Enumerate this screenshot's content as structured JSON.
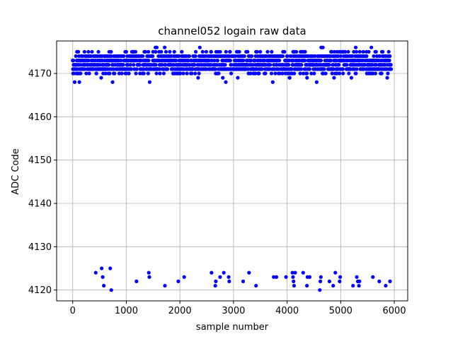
{
  "chart_data": {
    "type": "scatter",
    "title": "channel052 logain raw data",
    "xlabel": "sample number",
    "ylabel": "ADC Code",
    "xlim": [
      -300,
      6250
    ],
    "ylim": [
      4117.5,
      4177.5
    ],
    "xticks": [
      0,
      1000,
      2000,
      3000,
      4000,
      5000,
      6000
    ],
    "yticks": [
      4120,
      4130,
      4140,
      4150,
      4160,
      4170
    ],
    "grid": true,
    "marker_color": "#0000ff",
    "series": [
      {
        "sample_range": [
          0,
          5940
        ],
        "main_band": {
          "values": [
            4171,
            4172,
            4173,
            4174
          ],
          "edge_values": [
            4170,
            4175
          ],
          "extreme_values": [
            4169,
            4168,
            4176
          ]
        },
        "outliers": [
          [
            430,
            4124
          ],
          [
            540,
            4125
          ],
          [
            560,
            4123
          ],
          [
            580,
            4121
          ],
          [
            700,
            4125
          ],
          [
            720,
            4120
          ],
          [
            1190,
            4122
          ],
          [
            1420,
            4124
          ],
          [
            1430,
            4123
          ],
          [
            1720,
            4121
          ],
          [
            1970,
            4122
          ],
          [
            2080,
            4123
          ],
          [
            2590,
            4124
          ],
          [
            2660,
            4121
          ],
          [
            2670,
            4122
          ],
          [
            2750,
            4123
          ],
          [
            2820,
            4124
          ],
          [
            2910,
            4123
          ],
          [
            2920,
            4122
          ],
          [
            3180,
            4122
          ],
          [
            3290,
            4124
          ],
          [
            3420,
            4121
          ],
          [
            3750,
            4123
          ],
          [
            3800,
            4123
          ],
          [
            3980,
            4123
          ],
          [
            4100,
            4124
          ],
          [
            4110,
            4123
          ],
          [
            4120,
            4122
          ],
          [
            4130,
            4121
          ],
          [
            4150,
            4124
          ],
          [
            4300,
            4124
          ],
          [
            4370,
            4121
          ],
          [
            4380,
            4123
          ],
          [
            4420,
            4123
          ],
          [
            4610,
            4120
          ],
          [
            4620,
            4122
          ],
          [
            4630,
            4123
          ],
          [
            4790,
            4122
          ],
          [
            4860,
            4121
          ],
          [
            4900,
            4124
          ],
          [
            4980,
            4122
          ],
          [
            4990,
            4123
          ],
          [
            5230,
            4121
          ],
          [
            5300,
            4123
          ],
          [
            5320,
            4122
          ],
          [
            5340,
            4121
          ],
          [
            5350,
            4122
          ],
          [
            5600,
            4123
          ],
          [
            5720,
            4122
          ],
          [
            5840,
            4121
          ],
          [
            5920,
            4122
          ]
        ]
      }
    ]
  }
}
